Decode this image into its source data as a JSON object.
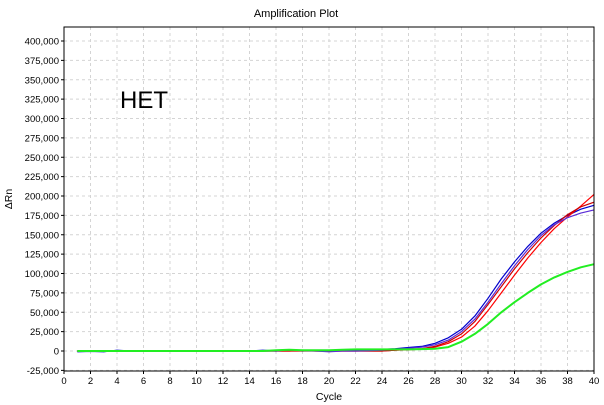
{
  "chart_data": {
    "type": "line",
    "title": "Amplification Plot",
    "xlabel": "Cycle",
    "ylabel": "ΔRn",
    "annotation": "HET",
    "xlim": [
      0,
      40
    ],
    "ylim": [
      -25000,
      410000
    ],
    "x_ticks": [
      0,
      2,
      4,
      6,
      8,
      10,
      12,
      14,
      16,
      18,
      20,
      22,
      24,
      26,
      28,
      30,
      32,
      34,
      36,
      38,
      40
    ],
    "y_ticks": [
      -25000,
      0,
      25000,
      50000,
      75000,
      100000,
      125000,
      150000,
      175000,
      200000,
      225000,
      250000,
      275000,
      300000,
      325000,
      350000,
      375000,
      400000
    ],
    "y_tick_labels": [
      "-25,000",
      "0",
      "25,000",
      "50,000",
      "75,000",
      "100,000",
      "125,000",
      "150,000",
      "175,000",
      "200,000",
      "225,000",
      "250,000",
      "275,000",
      "300,000",
      "325,000",
      "350,000",
      "375,000",
      "400,000"
    ],
    "grid": true,
    "x": [
      1,
      2,
      3,
      4,
      5,
      6,
      7,
      8,
      9,
      10,
      11,
      12,
      13,
      14,
      15,
      16,
      17,
      18,
      19,
      20,
      21,
      22,
      23,
      24,
      25,
      26,
      27,
      28,
      29,
      30,
      31,
      32,
      33,
      34,
      35,
      36,
      37,
      38,
      39,
      40
    ],
    "series": [
      {
        "color": "#0000cc",
        "values": [
          -1000,
          -500,
          -1000,
          1000,
          0,
          0,
          0,
          0,
          0,
          0,
          0,
          0,
          0,
          0,
          1000,
          0,
          1000,
          0,
          1000,
          0,
          1000,
          1000,
          1500,
          2000,
          3000,
          4500,
          6000,
          10000,
          17000,
          28000,
          45000,
          68000,
          93000,
          115000,
          135000,
          152000,
          165000,
          175000,
          183000,
          188000
        ]
      },
      {
        "color": "#ff0000",
        "values": [
          -500,
          0,
          -500,
          0,
          0,
          0,
          0,
          0,
          0,
          0,
          0,
          0,
          0,
          0,
          0,
          0,
          0,
          1000,
          0,
          0,
          0,
          0,
          0,
          0,
          1000,
          1500,
          2500,
          5000,
          10000,
          18000,
          32000,
          52000,
          75000,
          98000,
          120000,
          140000,
          158000,
          173000,
          187000,
          202000
        ]
      },
      {
        "color": "#cc0000",
        "values": [
          0,
          500,
          0,
          0,
          0,
          0,
          0,
          0,
          0,
          0,
          0,
          0,
          0,
          0,
          0,
          0,
          0,
          0,
          0,
          0,
          0,
          0,
          0,
          0,
          1000,
          2000,
          3000,
          6000,
          12000,
          22000,
          38000,
          60000,
          83000,
          106000,
          127000,
          146000,
          162000,
          176000,
          186000,
          192000
        ]
      },
      {
        "color": "#5a2bd6",
        "values": [
          0,
          0,
          0,
          0,
          0,
          0,
          0,
          0,
          0,
          0,
          0,
          0,
          0,
          0,
          0,
          0,
          1500,
          500,
          0,
          -1000,
          0,
          0,
          500,
          1000,
          2000,
          3500,
          5000,
          8000,
          14000,
          25000,
          41000,
          63000,
          87000,
          110000,
          131000,
          149000,
          163000,
          172000,
          178000,
          182000
        ]
      },
      {
        "color": "#22ee22",
        "values": [
          0,
          0,
          0,
          0,
          0,
          0,
          0,
          0,
          0,
          0,
          0,
          0,
          0,
          0,
          0,
          1000,
          1500,
          1000,
          1000,
          1000,
          1500,
          2000,
          2000,
          2000,
          2000,
          2000,
          2500,
          3000,
          5000,
          12000,
          22000,
          35000,
          50000,
          63000,
          75000,
          86000,
          95000,
          102000,
          108000,
          112000
        ]
      }
    ]
  }
}
